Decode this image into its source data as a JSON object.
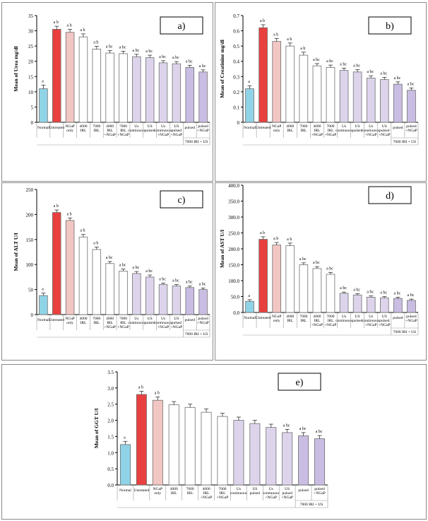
{
  "colors": {
    "normal": "#8fd3e6",
    "untreated": "#e8403e",
    "ngap": "#f2c6c3",
    "irl": "#ffffff",
    "us": "#ddd4ec",
    "combo": "#c9bde3",
    "edge": "#6f6f6f",
    "panel_border": "#8a8a8a"
  },
  "categories_top": [
    "Normal",
    "Untreated",
    "NGaP only",
    "4000 IRL",
    "7000 IRL",
    "4000 IRL +NGaP",
    "7000 IRL +NGaP",
    "Us continuous",
    "US pulsed",
    "Us continuous +NGaP",
    "US pulsed +NGaP",
    "pulsed",
    "pulsed +NGaP"
  ],
  "categories_bottom": [
    "Normal",
    "Untreated",
    "NGaP only",
    "4000 IRL",
    "7000 IRL",
    "4000 IRL +NGaP",
    "7000 IRL +NGaP",
    "Us continuous",
    "US pulsed",
    "Us continuous +NGaP",
    "US pulsed +NGaP",
    "pulsed",
    "pulsed +NGaP"
  ],
  "group_label": "7000 IRI + US",
  "chart_data": [
    {
      "type": "bar",
      "panel": "a)",
      "ylabel": "Mean of Urea mg/dl",
      "ylim": [
        0,
        35
      ],
      "ticks": [
        "0",
        "5",
        "10",
        "15",
        "20",
        "25",
        "30",
        "35"
      ],
      "tick_values": [
        0,
        5,
        10,
        15,
        20,
        25,
        30,
        35
      ],
      "values": [
        11,
        30.5,
        29.5,
        28,
        24,
        22.7,
        22.5,
        21.5,
        21.2,
        19.5,
        19.2,
        18,
        16.5
      ],
      "errors": [
        1.2,
        1.0,
        1.0,
        1.0,
        0.9,
        0.8,
        0.8,
        0.8,
        0.8,
        0.7,
        0.7,
        0.7,
        0.7
      ],
      "sig": [
        "a",
        "a b",
        "a b",
        "a b",
        "a b",
        "a bc",
        "a bc",
        "a bc",
        "a bc",
        "a bc",
        "a bc",
        "a bc",
        "a bc"
      ]
    },
    {
      "type": "bar",
      "panel": "b)",
      "ylabel": "Mean of Creatinine mg/dl",
      "ylim": [
        0,
        0.7
      ],
      "ticks": [
        "0",
        "0.1",
        "0.2",
        "0.3",
        "0.4",
        "0.5",
        "0.6",
        "0.7"
      ],
      "tick_values": [
        0,
        0.1,
        0.2,
        0.3,
        0.4,
        0.5,
        0.6,
        0.7
      ],
      "values": [
        0.22,
        0.62,
        0.53,
        0.5,
        0.44,
        0.37,
        0.36,
        0.34,
        0.33,
        0.29,
        0.28,
        0.25,
        0.21
      ],
      "errors": [
        0.02,
        0.02,
        0.02,
        0.02,
        0.02,
        0.015,
        0.015,
        0.015,
        0.015,
        0.015,
        0.015,
        0.015,
        0.015
      ],
      "sig": [
        "a",
        "a b",
        "a b",
        "a b",
        "a b",
        "a bc",
        "a bc",
        "a bc",
        "a bc",
        "a bc",
        "a bc",
        "a bc",
        "a bc"
      ]
    },
    {
      "type": "bar",
      "panel": "c)",
      "ylabel": "Mean of ALT U/l",
      "ylim": [
        0,
        250
      ],
      "ticks": [
        "0",
        "50",
        "100",
        "150",
        "200",
        "250"
      ],
      "tick_values": [
        0,
        50,
        100,
        150,
        200,
        250
      ],
      "values": [
        38,
        204,
        188,
        155,
        130,
        102,
        87,
        82,
        75,
        60,
        57,
        54,
        50
      ],
      "errors": [
        5,
        5,
        5,
        5,
        5,
        4,
        4,
        4,
        4,
        3,
        3,
        3,
        3
      ],
      "sig": [
        "a",
        "a b",
        "a b",
        "a b",
        "a b",
        "a bc",
        "a bc",
        "a bc",
        "a bc",
        "a bc",
        "a bc",
        "a bc",
        "a bc"
      ]
    },
    {
      "type": "bar",
      "panel": "d)",
      "ylabel": "Mean of AST U/l",
      "ylim": [
        0,
        400
      ],
      "ticks": [
        "0.0",
        "50.0",
        "100.0",
        "150.0",
        "200.0",
        "250.0",
        "300.0",
        "350.0",
        "400.0"
      ],
      "tick_values": [
        0,
        50,
        100,
        150,
        200,
        250,
        300,
        350,
        400
      ],
      "values": [
        35,
        230,
        212,
        210,
        150,
        138,
        120,
        60,
        55,
        48,
        46,
        44,
        38
      ],
      "errors": [
        5,
        8,
        8,
        8,
        6,
        6,
        6,
        4,
        4,
        4,
        4,
        4,
        4
      ],
      "sig": [
        "a",
        "a b",
        "a b",
        "a b",
        "a bc",
        "a bc",
        "a bc",
        "a bc",
        "a bc",
        "a bc",
        "a bc",
        "a bc",
        "a bc"
      ]
    },
    {
      "type": "bar",
      "panel": "e)",
      "ylabel": "Mean of GGT U/l",
      "ylim": [
        0,
        3.5
      ],
      "ticks": [
        "0.0",
        "0.5",
        "1.0",
        "1.5",
        "2.0",
        "2.5",
        "3.0",
        "3.5"
      ],
      "tick_values": [
        0,
        0.5,
        1,
        1.5,
        2,
        2.5,
        3,
        3.5
      ],
      "values": [
        1.25,
        2.8,
        2.62,
        2.48,
        2.4,
        2.25,
        2.12,
        2.0,
        1.9,
        1.78,
        1.62,
        1.52,
        1.43
      ],
      "errors": [
        0.1,
        0.1,
        0.1,
        0.1,
        0.1,
        0.1,
        0.1,
        0.1,
        0.1,
        0.1,
        0.1,
        0.1,
        0.1
      ],
      "sig": [
        "a",
        "a b",
        "a b",
        "",
        "",
        "",
        "",
        "",
        "",
        "",
        "a bc",
        "a bc",
        "a bc"
      ]
    }
  ]
}
